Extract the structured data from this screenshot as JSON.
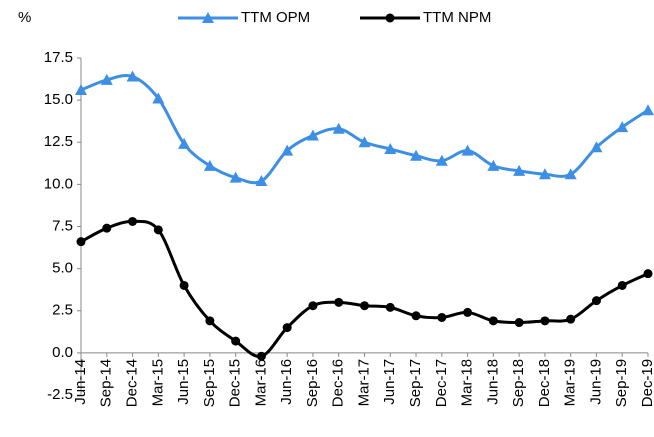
{
  "chart_data": {
    "type": "line",
    "y_label": "%",
    "categories": [
      "Jun-14",
      "Sep-14",
      "Dec-14",
      "Mar-15",
      "Jun-15",
      "Sep-15",
      "Dec-15",
      "Mar-16",
      "Jun-16",
      "Sep-16",
      "Dec-16",
      "Mar-17",
      "Jun-17",
      "Sep-17",
      "Dec-17",
      "Mar-18",
      "Jun-18",
      "Sep-18",
      "Dec-18",
      "Mar-19",
      "Jun-19",
      "Sep-19",
      "Dec-19"
    ],
    "series": [
      {
        "name": "TTM OPM",
        "color": "#3d8fe6",
        "marker": "triangle",
        "values": [
          15.6,
          16.2,
          16.4,
          15.1,
          12.4,
          11.1,
          10.4,
          10.2,
          12.0,
          12.9,
          13.3,
          12.5,
          12.1,
          11.7,
          11.4,
          12.0,
          11.1,
          10.8,
          10.6,
          10.6,
          12.2,
          13.4,
          14.4
        ]
      },
      {
        "name": "TTM NPM",
        "color": "#000000",
        "marker": "circle",
        "values": [
          6.6,
          7.4,
          7.8,
          7.3,
          4.0,
          1.9,
          0.7,
          -0.2,
          1.5,
          2.8,
          3.0,
          2.8,
          2.7,
          2.2,
          2.1,
          2.4,
          1.9,
          1.8,
          1.9,
          2.0,
          3.1,
          4.0,
          4.7
        ]
      }
    ],
    "ylim": [
      -2.5,
      17.5
    ],
    "yticks": [
      -2.5,
      {
        "value": 0,
        "label": "0.0"
      },
      2.5,
      {
        "value": 5,
        "label": "5.0"
      },
      7.5,
      {
        "value": 10,
        "label": "10.0"
      },
      12.5,
      {
        "value": 15,
        "label": "15.0"
      },
      17.5
    ],
    "legend": "top",
    "grid": false
  }
}
